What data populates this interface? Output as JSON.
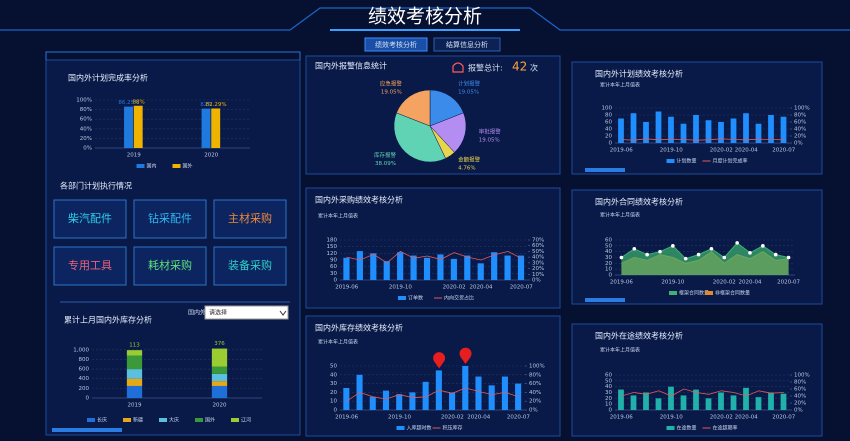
{
  "header": {
    "title": "绩效考核分析",
    "tabs": [
      "绩效考核分析",
      "结算信息分析"
    ]
  },
  "alarm": {
    "label": "报警总计:",
    "total": 42,
    "unit": "次"
  },
  "departments": {
    "title": "各部门计划执行情况",
    "buttons": [
      "柴汽配件",
      "钻采配件",
      "主材采购",
      "专用工具",
      "耗材采购",
      "装备采购"
    ]
  },
  "filter": {
    "label": "国内外",
    "placeholder": "请选择"
  },
  "chart_data": [
    {
      "type": "bar",
      "title": "国内外计划完成率分析",
      "categories": [
        "2019",
        "2020"
      ],
      "series": [
        {
          "name": "国内",
          "color": "#1f7ae0",
          "values": [
            86.25,
            82
          ],
          "value_labels": [
            "86.25%",
            "82%"
          ]
        },
        {
          "name": "国外",
          "color": "#f0b400",
          "values": [
            88,
            82.29
          ],
          "value_labels": [
            "88%",
            "82.29%"
          ]
        }
      ],
      "ylim": [
        0,
        100
      ],
      "yticks": [
        {
          "value": 0,
          "label": "0%"
        },
        {
          "value": 20,
          "label": "20%"
        },
        {
          "value": 40,
          "label": "40%"
        },
        {
          "value": 60,
          "label": "60%"
        },
        {
          "value": 80,
          "label": "80%"
        },
        {
          "value": 100,
          "label": "100%"
        }
      ],
      "legend": "bottom"
    },
    {
      "type": "stacked_bar",
      "title": "累计上月国内外库存分析",
      "categories": [
        "2019",
        "2020"
      ],
      "series": [
        {
          "name": "长庆",
          "color": "#1f6fd9",
          "values": [
            250,
            250
          ]
        },
        {
          "name": "新疆",
          "color": "#e6a817",
          "values": [
            150,
            100
          ]
        },
        {
          "name": "大庆",
          "color": "#5bc0de",
          "values": [
            200,
            150
          ]
        },
        {
          "name": "国外",
          "color": "#3a9a3a",
          "values": [
            280,
            150
          ]
        },
        {
          "name": "辽河",
          "color": "#9acd32",
          "values": [
            113,
            376
          ],
          "labels": true
        }
      ],
      "ylim": [
        0,
        1100
      ],
      "yticks": [
        0,
        200,
        400,
        600,
        800,
        {
          "value": 1000,
          "label": "1,000"
        }
      ],
      "legend": "bottom"
    },
    {
      "type": "pie",
      "title": "国内外报警信息统计",
      "categories": [
        "计划报警",
        "审批报警",
        "金额报警",
        "库存报警",
        "应急报警"
      ],
      "values": [
        19.05,
        19.05,
        4.76,
        38.09,
        19.05
      ],
      "value_labels": [
        "19.05%",
        "19.05%",
        "4.76%",
        "38.09%",
        "19.05%"
      ],
      "colors": [
        "#3b8beb",
        "#b38df2",
        "#e8d44d",
        "#5fd3b3",
        "#f4a460"
      ]
    },
    {
      "type": "bar",
      "title": "国内外采购绩效考核分析",
      "subtitle": "累计本年上月值表",
      "categories": [
        "2019-06",
        null,
        null,
        null,
        "2019-10",
        null,
        null,
        null,
        "2020-02",
        null,
        "2020-04",
        null,
        null,
        "2020-07"
      ],
      "series": [
        {
          "name": "订单数",
          "color": "#1f8fff",
          "values": [
            100,
            130,
            120,
            85,
            125,
            110,
            100,
            115,
            95,
            110,
            75,
            125,
            110,
            110
          ]
        },
        {
          "name": "内向交货占比",
          "color": "#e05a5a",
          "type": "line",
          "axis": "y2",
          "values": [
            40,
            35,
            45,
            30,
            50,
            38,
            42,
            36,
            48,
            40,
            35,
            44,
            50,
            38
          ]
        }
      ],
      "ylim": [
        0,
        180
      ],
      "yticks": [
        0,
        30,
        60,
        90,
        120,
        150,
        180
      ],
      "y2lim": [
        0,
        70
      ],
      "y2ticks": [
        {
          "value": 0,
          "label": "0%"
        },
        {
          "value": 10,
          "label": "10%"
        },
        {
          "value": 20,
          "label": "20%"
        },
        {
          "value": 30,
          "label": "30%"
        },
        {
          "value": 40,
          "label": "40%"
        },
        {
          "value": 50,
          "label": "50%"
        },
        {
          "value": 60,
          "label": "60%"
        },
        {
          "value": 70,
          "label": "70%"
        }
      ],
      "legend": "bottom"
    },
    {
      "type": "bar",
      "title": "国内外库存绩效考核分析",
      "subtitle": "累计本年上月值表",
      "categories": [
        "2019-06",
        null,
        null,
        null,
        "2019-10",
        null,
        null,
        null,
        "2020-02",
        null,
        "2020-04",
        null,
        null,
        "2020-07"
      ],
      "series": [
        {
          "name": "入库超时数",
          "color": "#1f8fff",
          "values": [
            25,
            40,
            15,
            22,
            18,
            20,
            32,
            45,
            20,
            50,
            38,
            28,
            38,
            30
          ]
        },
        {
          "name": "积压库存",
          "color": "#e05a5a",
          "type": "line",
          "axis": "y2",
          "values": [
            20,
            40,
            30,
            25,
            35,
            28,
            30,
            45,
            38,
            50,
            42,
            35,
            40,
            30
          ]
        }
      ],
      "ylim": [
        0,
        50
      ],
      "yticks": [
        0,
        10,
        20,
        30,
        40,
        50
      ],
      "y2lim": [
        0,
        100
      ],
      "y2ticks": [
        {
          "value": 0,
          "label": "0%"
        },
        {
          "value": 20,
          "label": "20%"
        },
        {
          "value": 40,
          "label": "40%"
        },
        {
          "value": 60,
          "label": "60%"
        },
        {
          "value": 80,
          "label": "80%"
        },
        {
          "value": 100,
          "label": "100%"
        }
      ],
      "legend": "bottom"
    },
    {
      "type": "bar",
      "title": "国内外计划绩效考核分析",
      "subtitle": "累计本年上月值表",
      "categories": [
        "2019-06",
        null,
        null,
        null,
        "2019-10",
        null,
        null,
        null,
        "2020-02",
        null,
        "2020-04",
        null,
        null,
        "2020-07"
      ],
      "series": [
        {
          "name": "计划数量",
          "color": "#1f8fff",
          "values": [
            70,
            85,
            60,
            90,
            75,
            55,
            80,
            65,
            60,
            70,
            85,
            55,
            80,
            75
          ]
        },
        {
          "name": "月度计划完成率",
          "color": "#e05a5a",
          "type": "line",
          "axis": "y2",
          "values": [
            10,
            8,
            12,
            9,
            11,
            10,
            8,
            9,
            12,
            10,
            9,
            11,
            10,
            9
          ]
        }
      ],
      "ylim": [
        0,
        100
      ],
      "yticks": [
        0,
        20,
        40,
        60,
        80,
        100
      ],
      "y2lim": [
        0,
        100
      ],
      "y2ticks": [
        {
          "value": 0,
          "label": "0%"
        },
        {
          "value": 20,
          "label": "20%"
        },
        {
          "value": 40,
          "label": "40%"
        },
        {
          "value": 60,
          "label": "60%"
        },
        {
          "value": 80,
          "label": "80%"
        },
        {
          "value": 100,
          "label": "100%"
        }
      ],
      "legend": "bottom"
    },
    {
      "type": "area",
      "title": "国内外合同绩效考核分析",
      "subtitle": "累计本年上月值表",
      "categories": [
        "2019-06",
        null,
        null,
        null,
        "2019-10",
        null,
        null,
        null,
        "2020-02",
        null,
        "2020-04",
        null,
        null,
        "2020-07"
      ],
      "series": [
        {
          "name": "框架合同数量",
          "color": "#3cb371",
          "type": "area",
          "values": [
            30,
            45,
            35,
            40,
            50,
            28,
            35,
            45,
            30,
            55,
            38,
            50,
            35,
            30
          ]
        },
        {
          "name": "非框架合同数量",
          "color": "#e08a2a",
          "type": "area",
          "values": [
            20,
            30,
            25,
            35,
            30,
            20,
            25,
            40,
            20,
            35,
            28,
            40,
            25,
            28
          ]
        }
      ],
      "ylim": [
        0,
        60
      ],
      "yticks": [
        0,
        10,
        20,
        30,
        40,
        50,
        60
      ],
      "legend": "bottom"
    },
    {
      "type": "bar",
      "title": "国内外在途绩效考核分析",
      "subtitle": "累计本年上月值表",
      "categories": [
        "2019-06",
        null,
        null,
        null,
        "2019-10",
        null,
        null,
        null,
        "2020-02",
        null,
        "2020-04",
        null,
        null,
        "2020-07"
      ],
      "series": [
        {
          "name": "在途数量",
          "color": "#20b2aa",
          "values": [
            35,
            25,
            30,
            20,
            40,
            25,
            35,
            20,
            30,
            25,
            38,
            22,
            30,
            28
          ]
        },
        {
          "name": "在途超期率",
          "color": "#e05a5a",
          "type": "line",
          "axis": "y2",
          "values": [
            40,
            50,
            45,
            55,
            40,
            60,
            50,
            45,
            55,
            50,
            40,
            55,
            48,
            50
          ]
        }
      ],
      "ylim": [
        0,
        60
      ],
      "yticks": [
        0,
        10,
        20,
        30,
        40,
        50,
        60
      ],
      "y2lim": [
        0,
        100
      ],
      "y2ticks": [
        {
          "value": 0,
          "label": "0%"
        },
        {
          "value": 20,
          "label": "20%"
        },
        {
          "value": 40,
          "label": "40%"
        },
        {
          "value": 60,
          "label": "60%"
        },
        {
          "value": 80,
          "label": "80%"
        },
        {
          "value": 100,
          "label": "100%"
        }
      ],
      "legend": "bottom"
    }
  ]
}
